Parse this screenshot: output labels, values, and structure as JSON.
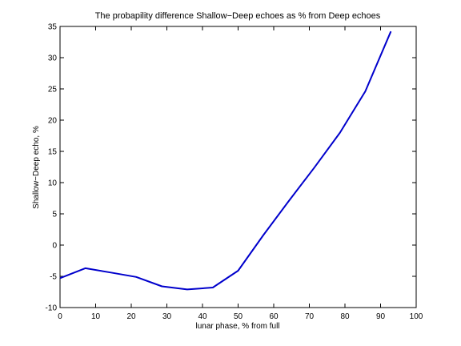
{
  "chart_data": {
    "type": "line",
    "title": "The probapility difference Shallow−Deep echoes as % from Deep echoes",
    "xlabel": "lunar phase, % from full",
    "ylabel": "Shallow−Deep echo, %",
    "xlim": [
      0,
      100
    ],
    "ylim": [
      -10,
      35
    ],
    "xticks": [
      0,
      10,
      20,
      30,
      40,
      50,
      60,
      70,
      80,
      90,
      100
    ],
    "yticks": [
      -10,
      -5,
      0,
      5,
      10,
      15,
      20,
      25,
      30,
      35
    ],
    "grid": false,
    "series": [
      {
        "color": "#0000cc",
        "x": [
          0,
          7.1,
          14.3,
          21.4,
          28.6,
          35.7,
          42.9,
          50,
          57.1,
          64.3,
          71.4,
          78.6,
          85.7,
          92.9
        ],
        "y": [
          -5.3,
          -3.7,
          -4.4,
          -5.1,
          -6.6,
          -7.1,
          -6.8,
          -4.1,
          1.6,
          7.1,
          12.4,
          18.0,
          24.6,
          34.2
        ]
      }
    ]
  }
}
